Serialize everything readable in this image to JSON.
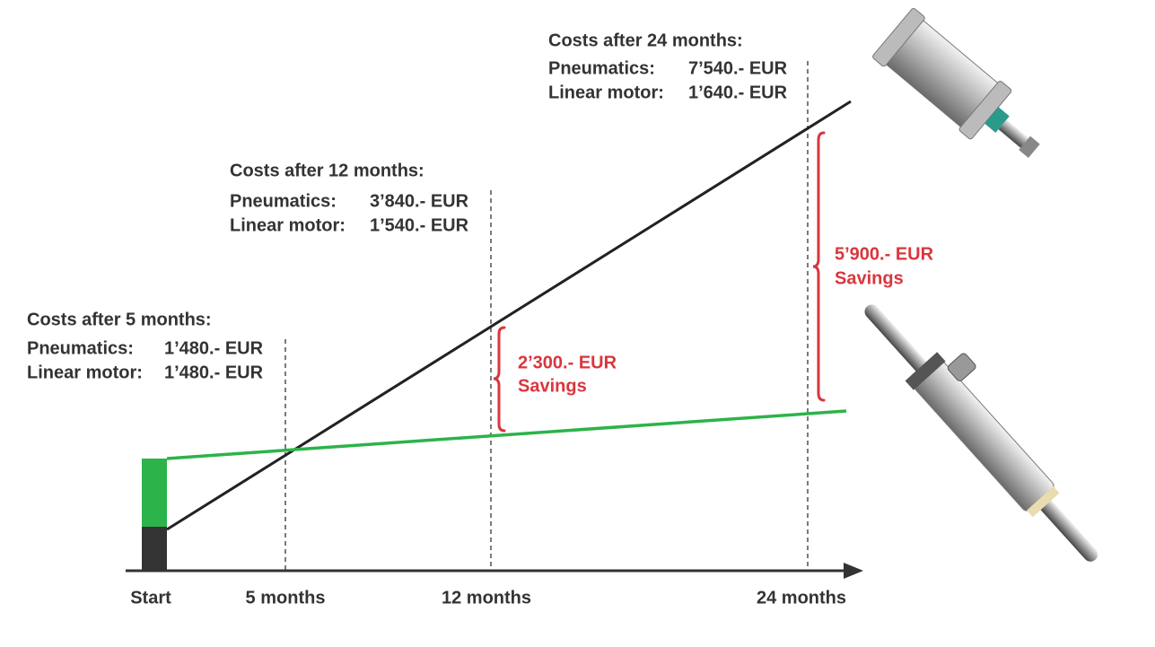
{
  "callouts": [
    {
      "title": "Costs after 5 months:",
      "rows": [
        [
          "Pneumatics:",
          "1’480.- EUR"
        ],
        [
          "Linear motor:",
          "1’480.- EUR"
        ]
      ]
    },
    {
      "title": "Costs after 12 months:",
      "rows": [
        [
          "Pneumatics:",
          "3’840.- EUR"
        ],
        [
          "Linear motor:",
          "1’540.- EUR"
        ]
      ]
    },
    {
      "title": "Costs after 24 months:",
      "rows": [
        [
          "Pneumatics:",
          "7’540.- EUR"
        ],
        [
          "Linear motor:",
          "1’640.- EUR"
        ]
      ]
    }
  ],
  "savings": [
    {
      "amount": "2’300.- EUR",
      "label": "Savings"
    },
    {
      "amount": "5’900.- EUR",
      "label": "Savings"
    }
  ],
  "axis_labels": [
    "Start",
    "5 months",
    "12 months",
    "24 months"
  ]
}
